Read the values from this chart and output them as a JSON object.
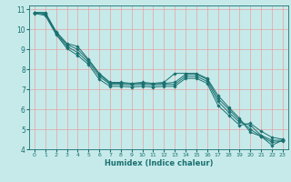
{
  "xlabel": "Humidex (Indice chaleur)",
  "bg_color": "#c6eaea",
  "grid_color": "#e8a0a0",
  "line_color": "#1a7070",
  "xlim": [
    -0.5,
    23.5
  ],
  "ylim": [
    4,
    11.2
  ],
  "xticks": [
    0,
    1,
    2,
    3,
    4,
    5,
    6,
    7,
    8,
    9,
    10,
    11,
    12,
    13,
    14,
    15,
    16,
    17,
    18,
    19,
    20,
    21,
    22,
    23
  ],
  "yticks": [
    4,
    5,
    6,
    7,
    8,
    9,
    10,
    11
  ],
  "lines": [
    [
      10.85,
      10.85,
      9.9,
      9.3,
      9.15,
      8.5,
      7.8,
      7.35,
      7.35,
      7.3,
      7.35,
      7.3,
      7.35,
      7.8,
      7.8,
      7.8,
      7.55,
      6.7,
      6.1,
      5.55,
      4.85,
      4.65,
      4.2,
      4.45
    ],
    [
      10.85,
      10.8,
      9.85,
      9.25,
      9.0,
      8.45,
      7.75,
      7.3,
      7.3,
      7.28,
      7.3,
      7.28,
      7.3,
      7.35,
      7.75,
      7.75,
      7.5,
      6.55,
      6.0,
      5.45,
      5.0,
      4.65,
      4.35,
      4.4
    ],
    [
      10.85,
      10.75,
      9.8,
      9.15,
      8.85,
      8.35,
      7.65,
      7.25,
      7.25,
      7.22,
      7.25,
      7.22,
      7.25,
      7.25,
      7.65,
      7.65,
      7.4,
      6.4,
      5.85,
      5.35,
      5.2,
      4.7,
      4.45,
      4.45
    ],
    [
      10.8,
      10.7,
      9.75,
      9.05,
      8.7,
      8.25,
      7.5,
      7.15,
      7.15,
      7.12,
      7.15,
      7.12,
      7.15,
      7.15,
      7.55,
      7.55,
      7.3,
      6.2,
      5.7,
      5.2,
      5.3,
      4.9,
      4.6,
      4.5
    ]
  ],
  "marker_lines": [
    [
      0,
      1,
      2,
      3,
      4,
      5,
      6,
      7,
      9,
      11,
      13,
      14,
      15,
      16,
      17,
      18,
      19,
      20,
      21,
      22,
      23
    ],
    [
      0,
      1,
      2,
      3,
      4,
      5,
      6,
      7,
      9,
      11,
      13,
      14,
      15,
      16,
      17,
      18,
      19,
      20,
      21,
      22,
      23
    ],
    [
      0,
      1,
      2,
      3,
      4,
      5,
      6,
      7,
      9,
      11,
      13,
      14,
      15,
      16,
      17,
      18,
      19,
      20,
      21,
      22,
      23
    ],
    [
      0,
      1,
      2,
      3,
      4,
      5,
      6,
      7,
      9,
      11,
      13,
      14,
      15,
      16,
      17,
      18,
      19,
      20,
      21,
      22,
      23
    ]
  ]
}
